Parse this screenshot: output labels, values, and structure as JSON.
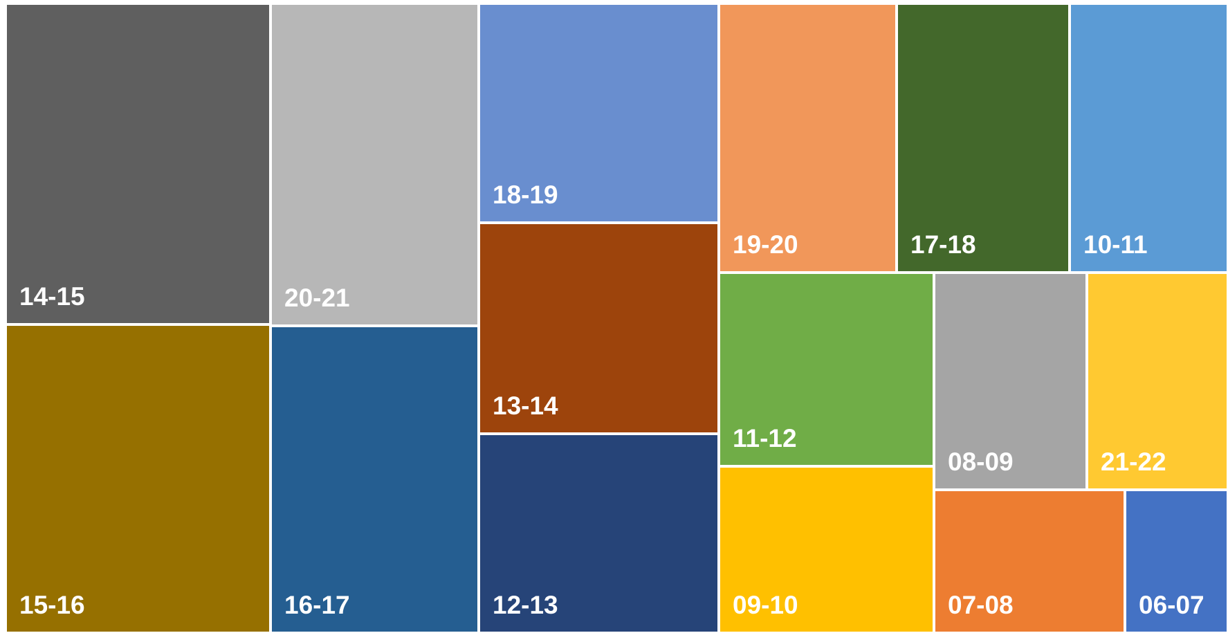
{
  "chart_data": {
    "type": "treemap",
    "title": "",
    "items": [
      {
        "label": "14-15",
        "value": 13.9,
        "color": "#5f5f5f"
      },
      {
        "label": "15-16",
        "value": 13.2,
        "color": "#967000"
      },
      {
        "label": "20-21",
        "value": 11.1,
        "color": "#b7b7b7"
      },
      {
        "label": "16-17",
        "value": 10.8,
        "color": "#255e91"
      },
      {
        "label": "18-19",
        "value": 8.5,
        "color": "#698ecf"
      },
      {
        "label": "13-14",
        "value": 8.2,
        "color": "#9d440c"
      },
      {
        "label": "12-13",
        "value": 7.9,
        "color": "#264478"
      },
      {
        "label": "19-20",
        "value": 5.0,
        "color": "#f1975a"
      },
      {
        "label": "17-18",
        "value": 4.9,
        "color": "#43682b"
      },
      {
        "label": "10-11",
        "value": 4.6,
        "color": "#5b9bd5"
      },
      {
        "label": "11-12",
        "value": 4.2,
        "color": "#70ad47"
      },
      {
        "label": "09-10",
        "value": 3.8,
        "color": "#ffc000"
      },
      {
        "label": "08-09",
        "value": 2.9,
        "color": "#a5a5a5"
      },
      {
        "label": "21-22",
        "value": 2.6,
        "color": "#ffc931"
      },
      {
        "label": "07-08",
        "value": 2.4,
        "color": "#ed7d31"
      },
      {
        "label": "06-07",
        "value": 1.6,
        "color": "#4472c4"
      }
    ]
  }
}
